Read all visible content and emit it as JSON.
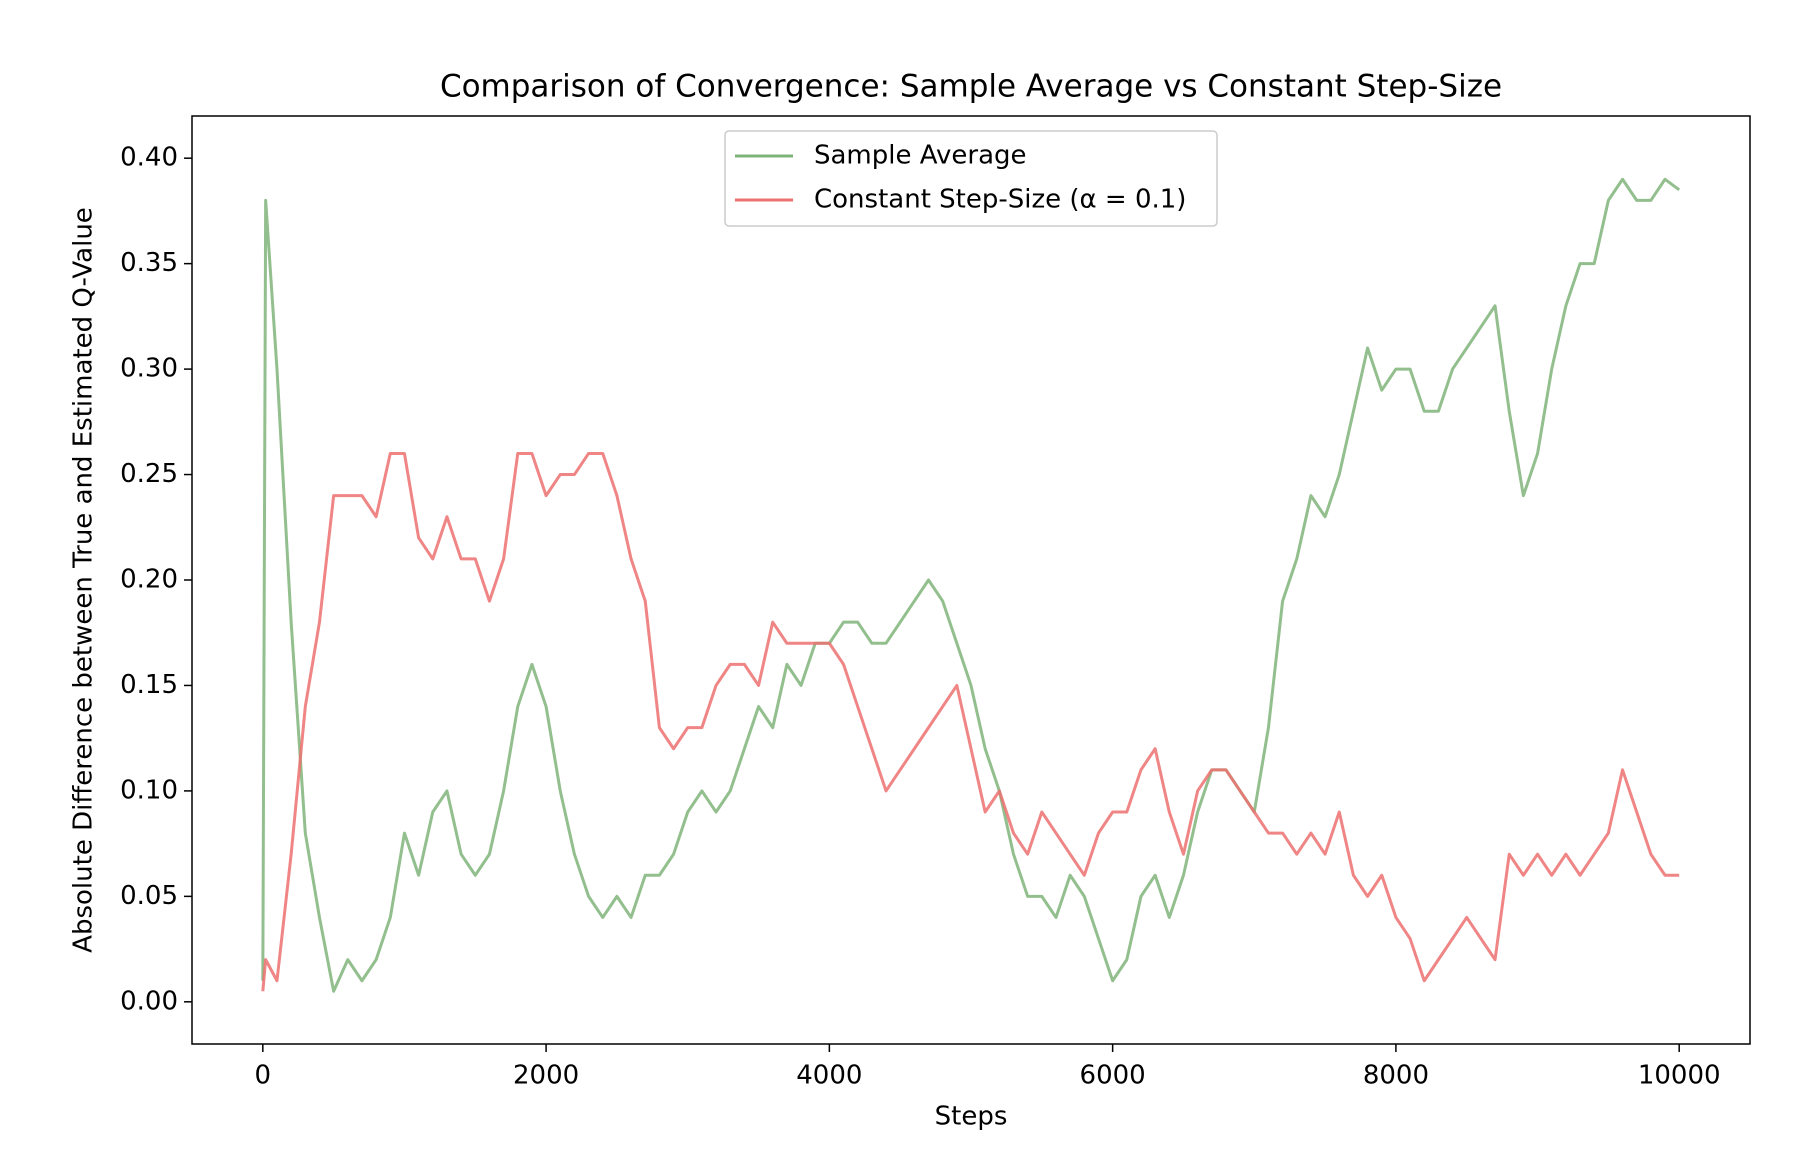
{
  "chart_data": {
    "type": "line",
    "title": "Comparison of Convergence: Sample Average vs Constant Step-Size",
    "xlabel": "Steps",
    "ylabel": "Absolute Difference between True and Estimated Q-Value",
    "x": [
      0,
      20,
      100,
      200,
      300,
      400,
      500,
      600,
      700,
      800,
      900,
      1000,
      1100,
      1200,
      1300,
      1400,
      1500,
      1600,
      1700,
      1800,
      1900,
      2000,
      2100,
      2200,
      2300,
      2400,
      2500,
      2600,
      2700,
      2800,
      2900,
      3000,
      3100,
      3200,
      3300,
      3400,
      3500,
      3600,
      3700,
      3800,
      3900,
      4000,
      4100,
      4200,
      4300,
      4400,
      4500,
      4600,
      4700,
      4800,
      4900,
      5000,
      5100,
      5200,
      5300,
      5400,
      5500,
      5600,
      5700,
      5800,
      5900,
      6000,
      6100,
      6200,
      6300,
      6400,
      6500,
      6600,
      6700,
      6800,
      6900,
      7000,
      7100,
      7200,
      7300,
      7400,
      7500,
      7600,
      7700,
      7800,
      7900,
      8000,
      8100,
      8200,
      8300,
      8400,
      8500,
      8600,
      8700,
      8800,
      8900,
      9000,
      9100,
      9200,
      9300,
      9400,
      9500,
      9600,
      9700,
      9800,
      9900,
      10000
    ],
    "series": [
      {
        "name": "Sample Average",
        "color": "#7fb479",
        "values": [
          0.01,
          0.38,
          0.3,
          0.18,
          0.08,
          0.04,
          0.005,
          0.02,
          0.01,
          0.02,
          0.04,
          0.08,
          0.06,
          0.09,
          0.1,
          0.07,
          0.06,
          0.07,
          0.1,
          0.14,
          0.16,
          0.14,
          0.1,
          0.07,
          0.05,
          0.04,
          0.05,
          0.04,
          0.06,
          0.06,
          0.07,
          0.09,
          0.1,
          0.09,
          0.1,
          0.12,
          0.14,
          0.13,
          0.16,
          0.15,
          0.17,
          0.17,
          0.18,
          0.18,
          0.17,
          0.17,
          0.18,
          0.19,
          0.2,
          0.19,
          0.17,
          0.15,
          0.12,
          0.1,
          0.07,
          0.05,
          0.05,
          0.04,
          0.06,
          0.05,
          0.03,
          0.01,
          0.02,
          0.05,
          0.06,
          0.04,
          0.06,
          0.09,
          0.11,
          0.11,
          0.1,
          0.09,
          0.13,
          0.19,
          0.21,
          0.24,
          0.23,
          0.25,
          0.28,
          0.31,
          0.29,
          0.3,
          0.3,
          0.28,
          0.28,
          0.3,
          0.31,
          0.32,
          0.33,
          0.28,
          0.24,
          0.26,
          0.3,
          0.33,
          0.35,
          0.35,
          0.38,
          0.39,
          0.38,
          0.38,
          0.39,
          0.385
        ]
      },
      {
        "name": "Constant Step-Size (α = 0.1)",
        "color": "#ec7070",
        "values": [
          0.005,
          0.02,
          0.01,
          0.07,
          0.14,
          0.18,
          0.24,
          0.24,
          0.24,
          0.23,
          0.26,
          0.26,
          0.22,
          0.21,
          0.23,
          0.21,
          0.21,
          0.19,
          0.21,
          0.26,
          0.26,
          0.24,
          0.25,
          0.25,
          0.26,
          0.26,
          0.24,
          0.21,
          0.19,
          0.13,
          0.12,
          0.13,
          0.13,
          0.15,
          0.16,
          0.16,
          0.15,
          0.18,
          0.17,
          0.17,
          0.17,
          0.17,
          0.16,
          0.14,
          0.12,
          0.1,
          0.11,
          0.12,
          0.13,
          0.14,
          0.15,
          0.12,
          0.09,
          0.1,
          0.08,
          0.07,
          0.09,
          0.08,
          0.07,
          0.06,
          0.08,
          0.09,
          0.09,
          0.11,
          0.12,
          0.09,
          0.07,
          0.1,
          0.11,
          0.11,
          0.1,
          0.09,
          0.08,
          0.08,
          0.07,
          0.08,
          0.07,
          0.09,
          0.06,
          0.05,
          0.06,
          0.04,
          0.03,
          0.01,
          0.02,
          0.03,
          0.04,
          0.03,
          0.02,
          0.07,
          0.06,
          0.07,
          0.06,
          0.07,
          0.06,
          0.07,
          0.08,
          0.11,
          0.09,
          0.07,
          0.06,
          0.06
        ]
      }
    ],
    "xlim": [
      -500,
      10500
    ],
    "ylim": [
      -0.02,
      0.42
    ],
    "xticks": [
      0,
      2000,
      4000,
      6000,
      8000,
      10000
    ],
    "yticks": [
      {
        "value": 0,
        "label": "0.00"
      },
      {
        "value": 0.05,
        "label": "0.05"
      },
      {
        "value": 0.1,
        "label": "0.10"
      },
      {
        "value": 0.15,
        "label": "0.15"
      },
      {
        "value": 0.2,
        "label": "0.20"
      },
      {
        "value": 0.25,
        "label": "0.25"
      },
      {
        "value": 0.3,
        "label": "0.30"
      },
      {
        "value": 0.35,
        "label": "0.35"
      },
      {
        "value": 0.4,
        "label": "0.40"
      }
    ],
    "legend": "upper center",
    "grid": false
  }
}
